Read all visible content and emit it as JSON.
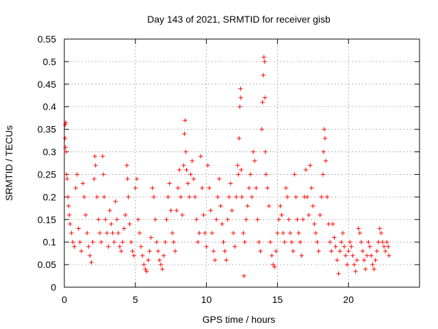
{
  "chart_data": {
    "type": "scatter",
    "title": "Day 143 of 2021, SRMTID for receiver gisb",
    "xlabel": "GPS time / hours",
    "ylabel": "SRMTID / TECUs",
    "xlim": [
      0,
      25
    ],
    "ylim": [
      0,
      0.55
    ],
    "xticks": [
      0,
      5,
      10,
      15,
      20
    ],
    "xtick_labels": [
      "0",
      "5",
      "10",
      "15",
      "20"
    ],
    "yticks": [
      0,
      0.05,
      0.1,
      0.15,
      0.2,
      0.25,
      0.3,
      0.35,
      0.4,
      0.45,
      0.5,
      0.55
    ],
    "ytick_labels": [
      "0",
      "0.05",
      "0.1",
      "0.15",
      "0.2",
      "0.25",
      "0.3",
      "0.35",
      "0.4",
      "0.45",
      "0.5",
      "0.55"
    ],
    "grid": true,
    "marker": "+",
    "marker_color": "#ff0000",
    "series": [
      {
        "name": "SRMTID",
        "points": [
          [
            0.05,
            0.36
          ],
          [
            0.05,
            0.33
          ],
          [
            0.08,
            0.31
          ],
          [
            0.1,
            0.365
          ],
          [
            0.12,
            0.3
          ],
          [
            0.15,
            0.25
          ],
          [
            0.2,
            0.24
          ],
          [
            0.25,
            0.2
          ],
          [
            0.3,
            0.18
          ],
          [
            0.35,
            0.16
          ],
          [
            0.4,
            0.14
          ],
          [
            0.5,
            0.12
          ],
          [
            0.6,
            0.1
          ],
          [
            0.7,
            0.09
          ],
          [
            0.8,
            0.22
          ],
          [
            0.9,
            0.25
          ],
          [
            1.0,
            0.13
          ],
          [
            1.1,
            0.1
          ],
          [
            1.2,
            0.08
          ],
          [
            1.3,
            0.23
          ],
          [
            1.4,
            0.2
          ],
          [
            1.5,
            0.16
          ],
          [
            1.6,
            0.12
          ],
          [
            1.7,
            0.09
          ],
          [
            1.8,
            0.07
          ],
          [
            1.9,
            0.055
          ],
          [
            2.0,
            0.1
          ],
          [
            2.1,
            0.24
          ],
          [
            2.15,
            0.29
          ],
          [
            2.2,
            0.27
          ],
          [
            2.3,
            0.2
          ],
          [
            2.4,
            0.15
          ],
          [
            2.5,
            0.12
          ],
          [
            2.6,
            0.1
          ],
          [
            2.7,
            0.29
          ],
          [
            2.75,
            0.25
          ],
          [
            2.8,
            0.2
          ],
          [
            2.9,
            0.15
          ],
          [
            3.0,
            0.12
          ],
          [
            3.1,
            0.09
          ],
          [
            3.2,
            0.17
          ],
          [
            3.3,
            0.14
          ],
          [
            3.4,
            0.12
          ],
          [
            3.5,
            0.1
          ],
          [
            3.6,
            0.19
          ],
          [
            3.7,
            0.15
          ],
          [
            3.8,
            0.12
          ],
          [
            3.9,
            0.09
          ],
          [
            4.0,
            0.08
          ],
          [
            4.1,
            0.1
          ],
          [
            4.2,
            0.13
          ],
          [
            4.3,
            0.16
          ],
          [
            4.4,
            0.27
          ],
          [
            4.45,
            0.24
          ],
          [
            4.5,
            0.2
          ],
          [
            4.6,
            0.14
          ],
          [
            4.7,
            0.1
          ],
          [
            4.8,
            0.08
          ],
          [
            4.9,
            0.07
          ],
          [
            5.0,
            0.22
          ],
          [
            5.1,
            0.24
          ],
          [
            5.2,
            0.15
          ],
          [
            5.3,
            0.12
          ],
          [
            5.4,
            0.09
          ],
          [
            5.5,
            0.07
          ],
          [
            5.6,
            0.05
          ],
          [
            5.7,
            0.04
          ],
          [
            5.8,
            0.035
          ],
          [
            5.9,
            0.06
          ],
          [
            6.0,
            0.08
          ],
          [
            6.1,
            0.11
          ],
          [
            6.2,
            0.22
          ],
          [
            6.3,
            0.2
          ],
          [
            6.4,
            0.15
          ],
          [
            6.5,
            0.1
          ],
          [
            6.6,
            0.08
          ],
          [
            6.7,
            0.06
          ],
          [
            6.8,
            0.05
          ],
          [
            6.9,
            0.04
          ],
          [
            7.0,
            0.07
          ],
          [
            7.1,
            0.1
          ],
          [
            7.2,
            0.15
          ],
          [
            7.3,
            0.2
          ],
          [
            7.4,
            0.23
          ],
          [
            7.5,
            0.17
          ],
          [
            7.6,
            0.12
          ],
          [
            7.7,
            0.1
          ],
          [
            7.8,
            0.08
          ],
          [
            7.9,
            0.17
          ],
          [
            8.0,
            0.22
          ],
          [
            8.1,
            0.26
          ],
          [
            8.2,
            0.2
          ],
          [
            8.3,
            0.16
          ],
          [
            8.4,
            0.27
          ],
          [
            8.45,
            0.34
          ],
          [
            8.5,
            0.37
          ],
          [
            8.55,
            0.3
          ],
          [
            8.6,
            0.26
          ],
          [
            8.7,
            0.23
          ],
          [
            8.8,
            0.2
          ],
          [
            8.9,
            0.25
          ],
          [
            9.0,
            0.28
          ],
          [
            9.1,
            0.24
          ],
          [
            9.2,
            0.2
          ],
          [
            9.3,
            0.15
          ],
          [
            9.4,
            0.1
          ],
          [
            9.5,
            0.12
          ],
          [
            9.6,
            0.29
          ],
          [
            9.7,
            0.22
          ],
          [
            9.8,
            0.16
          ],
          [
            9.9,
            0.12
          ],
          [
            10.0,
            0.09
          ],
          [
            10.1,
            0.27
          ],
          [
            10.2,
            0.22
          ],
          [
            10.3,
            0.17
          ],
          [
            10.4,
            0.12
          ],
          [
            10.5,
            0.08
          ],
          [
            10.6,
            0.06
          ],
          [
            10.7,
            0.15
          ],
          [
            10.8,
            0.2
          ],
          [
            10.9,
            0.24
          ],
          [
            11.0,
            0.18
          ],
          [
            11.1,
            0.14
          ],
          [
            11.2,
            0.1
          ],
          [
            11.3,
            0.08
          ],
          [
            11.4,
            0.06
          ],
          [
            11.5,
            0.15
          ],
          [
            11.6,
            0.2
          ],
          [
            11.7,
            0.23
          ],
          [
            11.8,
            0.17
          ],
          [
            11.9,
            0.12
          ],
          [
            12.0,
            0.09
          ],
          [
            12.1,
            0.2
          ],
          [
            12.2,
            0.27
          ],
          [
            12.25,
            0.25
          ],
          [
            12.3,
            0.33
          ],
          [
            12.35,
            0.4
          ],
          [
            12.4,
            0.44
          ],
          [
            12.42,
            0.42
          ],
          [
            12.45,
            0.26
          ],
          [
            12.5,
            0.2
          ],
          [
            12.6,
            0.12
          ],
          [
            12.65,
            0.025
          ],
          [
            12.7,
            0.1
          ],
          [
            12.8,
            0.15
          ],
          [
            12.9,
            0.18
          ],
          [
            13.0,
            0.22
          ],
          [
            13.1,
            0.25
          ],
          [
            13.2,
            0.2
          ],
          [
            13.3,
            0.3
          ],
          [
            13.4,
            0.28
          ],
          [
            13.5,
            0.22
          ],
          [
            13.6,
            0.15
          ],
          [
            13.7,
            0.1
          ],
          [
            13.8,
            0.08
          ],
          [
            13.9,
            0.35
          ],
          [
            13.95,
            0.41
          ],
          [
            14.0,
            0.47
          ],
          [
            14.05,
            0.51
          ],
          [
            14.1,
            0.5
          ],
          [
            14.12,
            0.42
          ],
          [
            14.15,
            0.3
          ],
          [
            14.2,
            0.25
          ],
          [
            14.3,
            0.22
          ],
          [
            14.4,
            0.18
          ],
          [
            14.5,
            0.1
          ],
          [
            14.6,
            0.07
          ],
          [
            14.7,
            0.05
          ],
          [
            14.8,
            0.045
          ],
          [
            14.9,
            0.08
          ],
          [
            15.0,
            0.12
          ],
          [
            15.1,
            0.15
          ],
          [
            15.2,
            0.18
          ],
          [
            15.3,
            0.16
          ],
          [
            15.4,
            0.12
          ],
          [
            15.5,
            0.1
          ],
          [
            15.6,
            0.22
          ],
          [
            15.7,
            0.2
          ],
          [
            15.8,
            0.15
          ],
          [
            15.9,
            0.12
          ],
          [
            16.0,
            0.1
          ],
          [
            16.1,
            0.08
          ],
          [
            16.2,
            0.25
          ],
          [
            16.3,
            0.2
          ],
          [
            16.4,
            0.15
          ],
          [
            16.5,
            0.12
          ],
          [
            16.6,
            0.1
          ],
          [
            16.7,
            0.07
          ],
          [
            16.8,
            0.15
          ],
          [
            16.9,
            0.2
          ],
          [
            17.0,
            0.26
          ],
          [
            17.1,
            0.2
          ],
          [
            17.2,
            0.16
          ],
          [
            17.3,
            0.27
          ],
          [
            17.4,
            0.22
          ],
          [
            17.5,
            0.18
          ],
          [
            17.6,
            0.14
          ],
          [
            17.7,
            0.12
          ],
          [
            17.8,
            0.1
          ],
          [
            17.9,
            0.08
          ],
          [
            18.0,
            0.16
          ],
          [
            18.1,
            0.2
          ],
          [
            18.2,
            0.25
          ],
          [
            18.25,
            0.3
          ],
          [
            18.3,
            0.35
          ],
          [
            18.35,
            0.33
          ],
          [
            18.4,
            0.28
          ],
          [
            18.5,
            0.2
          ],
          [
            18.6,
            0.14
          ],
          [
            18.7,
            0.1
          ],
          [
            18.8,
            0.08
          ],
          [
            18.9,
            0.14
          ],
          [
            19.0,
            0.11
          ],
          [
            19.1,
            0.09
          ],
          [
            19.2,
            0.06
          ],
          [
            19.3,
            0.03
          ],
          [
            19.4,
            0.08
          ],
          [
            19.5,
            0.1
          ],
          [
            19.6,
            0.12
          ],
          [
            19.7,
            0.09
          ],
          [
            19.8,
            0.07
          ],
          [
            19.9,
            0.05
          ],
          [
            20.0,
            0.08
          ],
          [
            20.1,
            0.1
          ],
          [
            20.2,
            0.09
          ],
          [
            20.3,
            0.07
          ],
          [
            20.4,
            0.05
          ],
          [
            20.5,
            0.035
          ],
          [
            20.6,
            0.06
          ],
          [
            20.7,
            0.13
          ],
          [
            20.8,
            0.12
          ],
          [
            20.9,
            0.1
          ],
          [
            21.0,
            0.08
          ],
          [
            21.1,
            0.06
          ],
          [
            21.2,
            0.04
          ],
          [
            21.3,
            0.07
          ],
          [
            21.4,
            0.1
          ],
          [
            21.5,
            0.09
          ],
          [
            21.6,
            0.07
          ],
          [
            21.7,
            0.05
          ],
          [
            21.8,
            0.04
          ],
          [
            21.9,
            0.06
          ],
          [
            22.0,
            0.08
          ],
          [
            22.1,
            0.1
          ],
          [
            22.2,
            0.13
          ],
          [
            22.3,
            0.12
          ],
          [
            22.4,
            0.1
          ],
          [
            22.5,
            0.09
          ],
          [
            22.6,
            0.08
          ],
          [
            22.7,
            0.1
          ],
          [
            22.8,
            0.09
          ],
          [
            22.85,
            0.07
          ]
        ]
      }
    ]
  }
}
